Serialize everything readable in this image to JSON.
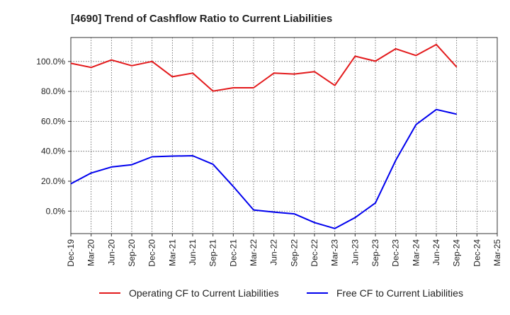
{
  "chart_data": {
    "type": "line",
    "title": "[4690]  Trend of Cashflow Ratio to Current Liabilities",
    "xlabel": "",
    "ylabel": "",
    "categories": [
      "Dec-19",
      "Mar-20",
      "Jun-20",
      "Sep-20",
      "Dec-20",
      "Mar-21",
      "Jun-21",
      "Sep-21",
      "Dec-21",
      "Mar-22",
      "Jun-22",
      "Sep-22",
      "Dec-22",
      "Mar-23",
      "Jun-23",
      "Sep-23",
      "Dec-23",
      "Mar-24",
      "Jun-24",
      "Sep-24",
      "Dec-24",
      "Mar-25"
    ],
    "y_ticks": [
      0,
      20,
      40,
      60,
      80,
      100
    ],
    "y_tick_labels": [
      "0.0%",
      "20.0%",
      "40.0%",
      "60.0%",
      "80.0%",
      "100.0%"
    ],
    "ylim": [
      -15,
      116
    ],
    "grid": true,
    "legend_position": "bottom",
    "series": [
      {
        "name": "Operating CF to Current Liabilities",
        "color": "#e31a1c",
        "values": [
          98.8,
          96.0,
          101.0,
          97.2,
          100.0,
          89.8,
          92.2,
          80.2,
          82.4,
          82.4,
          92.2,
          91.6,
          93.2,
          84.0,
          103.5,
          100.2,
          108.5,
          104.0,
          111.3,
          96.3,
          null,
          null
        ]
      },
      {
        "name": "Free CF to Current Liabilities",
        "color": "#0000ee",
        "values": [
          18.3,
          25.5,
          29.5,
          31.0,
          36.3,
          36.8,
          37.0,
          31.3,
          16.5,
          0.8,
          -0.6,
          -1.8,
          -7.6,
          -11.6,
          -4.3,
          5.5,
          34.0,
          57.8,
          67.9,
          64.8,
          null,
          null
        ]
      }
    ]
  }
}
